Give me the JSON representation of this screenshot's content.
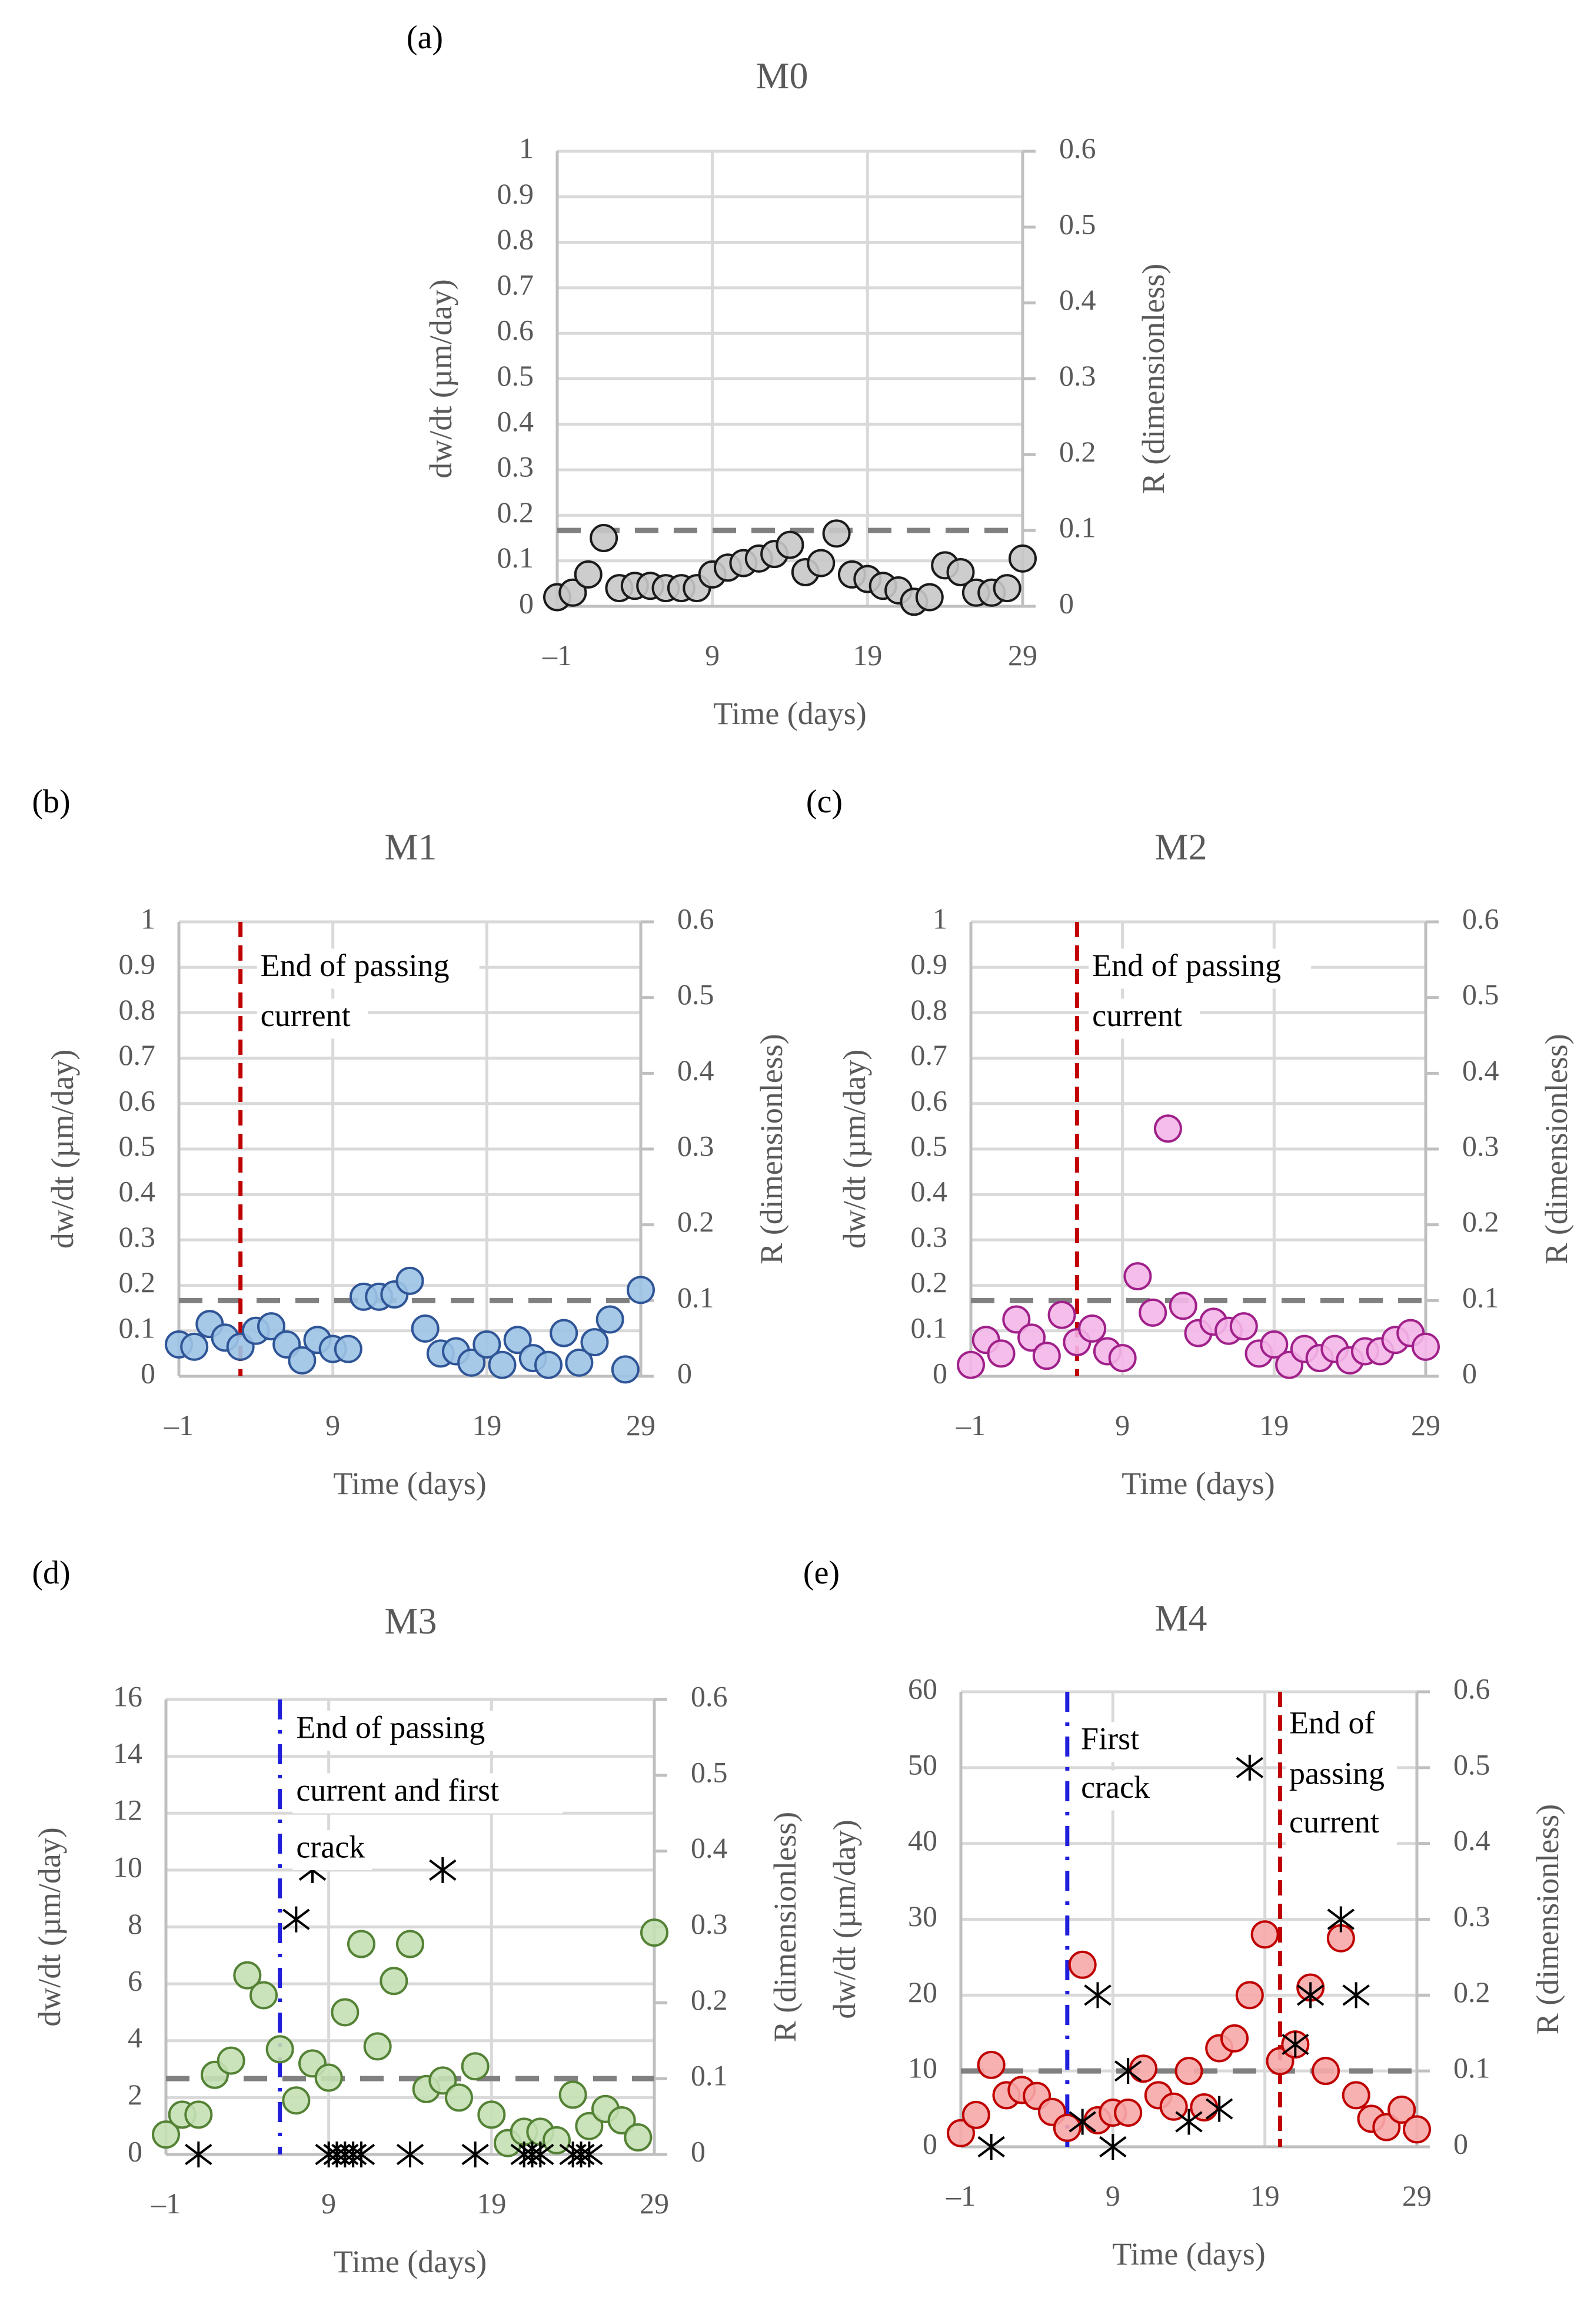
{
  "chart_data": [
    {
      "panel_label": "(a)",
      "title": "M0",
      "type": "scatter",
      "xlabel": "Time (days)",
      "ylabel": "dw/dt (µm/day)",
      "y2label": "R (dimensionless)",
      "xlim": [
        -1,
        29
      ],
      "xticks": [
        -1,
        9,
        19,
        29
      ],
      "ylim": [
        0,
        1
      ],
      "yticks": [
        0,
        0.1,
        0.2,
        0.3,
        0.4,
        0.5,
        0.6,
        0.7,
        0.8,
        0.9,
        1
      ],
      "y2lim": [
        0,
        0.6
      ],
      "y2ticks": [
        0,
        0.1,
        0.2,
        0.3,
        0.4,
        0.5,
        0.6
      ],
      "grid": true,
      "series": [
        {
          "name": "dw/dt",
          "axis": "left",
          "marker": "circle",
          "color": "#c8c8c8",
          "edge": "#1a1a1a",
          "x": [
            -1,
            0,
            1,
            2,
            3,
            4,
            5,
            6,
            7,
            8,
            9,
            10,
            11,
            12,
            13,
            14,
            15,
            16,
            17,
            18,
            19,
            20,
            21,
            22,
            23,
            24,
            25,
            26,
            27,
            28,
            29
          ],
          "y": [
            0.02,
            0.03,
            0.07,
            0.15,
            0.04,
            0.045,
            0.045,
            0.04,
            0.04,
            0.04,
            0.07,
            0.085,
            0.095,
            0.105,
            0.115,
            0.135,
            0.075,
            0.095,
            0.16,
            0.07,
            0.06,
            0.045,
            0.035,
            0.01,
            0.02,
            0.09,
            0.075,
            0.03,
            0.03,
            0.04,
            0.105
          ]
        }
      ],
      "threshold": {
        "axis": "right",
        "value": 0.1,
        "color": "#808080"
      },
      "vlines": [],
      "annotations": []
    },
    {
      "panel_label": "(b)",
      "title": "M1",
      "type": "scatter",
      "xlabel": "Time (days)",
      "ylabel": "dw/dt (µm/day)",
      "y2label": "R (dimensionless)",
      "xlim": [
        -1,
        29
      ],
      "xticks": [
        -1,
        9,
        19,
        29
      ],
      "ylim": [
        0,
        1
      ],
      "yticks": [
        0,
        0.1,
        0.2,
        0.3,
        0.4,
        0.5,
        0.6,
        0.7,
        0.8,
        0.9,
        1
      ],
      "y2lim": [
        0,
        0.6
      ],
      "y2ticks": [
        0,
        0.1,
        0.2,
        0.3,
        0.4,
        0.5,
        0.6
      ],
      "grid": true,
      "series": [
        {
          "name": "dw/dt",
          "axis": "left",
          "marker": "circle",
          "color": "#9dc3e6",
          "edge": "#2f5597",
          "x": [
            -1,
            0,
            1,
            2,
            3,
            4,
            5,
            6,
            7,
            8,
            9,
            10,
            11,
            12,
            13,
            14,
            15,
            16,
            17,
            18,
            19,
            20,
            21,
            22,
            23,
            24,
            25,
            26,
            27,
            28,
            29
          ],
          "y": [
            0.07,
            0.065,
            0.115,
            0.085,
            0.065,
            0.1,
            0.11,
            0.07,
            0.035,
            0.08,
            0.06,
            0.06,
            0.175,
            0.175,
            0.18,
            0.21,
            0.105,
            0.05,
            0.055,
            0.03,
            0.07,
            0.025,
            0.08,
            0.04,
            0.025,
            0.095,
            0.03,
            0.075,
            0.125,
            0.015,
            0.19
          ]
        }
      ],
      "threshold": {
        "axis": "right",
        "value": 0.1,
        "color": "#808080"
      },
      "vlines": [
        {
          "x": 3,
          "color": "#c00000",
          "style": "dashed"
        }
      ],
      "annotations": [
        {
          "lines": [
            "End of passing",
            "current"
          ],
          "x": 4.3,
          "y": [
            0.897,
            0.787
          ]
        }
      ]
    },
    {
      "panel_label": "(c)",
      "title": "M2",
      "type": "scatter",
      "xlabel": "Time (days)",
      "ylabel": "dw/dt (µm/day)",
      "y2label": "R (dimensionless)",
      "xlim": [
        -1,
        29
      ],
      "xticks": [
        -1,
        9,
        19,
        29
      ],
      "ylim": [
        0,
        1
      ],
      "yticks": [
        0,
        0.1,
        0.2,
        0.3,
        0.4,
        0.5,
        0.6,
        0.7,
        0.8,
        0.9,
        1
      ],
      "y2lim": [
        0,
        0.6
      ],
      "y2ticks": [
        0,
        0.1,
        0.2,
        0.3,
        0.4,
        0.5,
        0.6
      ],
      "grid": true,
      "series": [
        {
          "name": "dw/dt",
          "axis": "left",
          "marker": "circle",
          "color": "#f4b6e8",
          "edge": "#a0208a",
          "x": [
            -1,
            0,
            1,
            2,
            3,
            4,
            5,
            6,
            7,
            8,
            9,
            10,
            11,
            12,
            13,
            14,
            15,
            16,
            17,
            18,
            19,
            20,
            21,
            22,
            23,
            24,
            25,
            26,
            27,
            28,
            29
          ],
          "y": [
            0.025,
            0.08,
            0.05,
            0.125,
            0.085,
            0.045,
            0.135,
            0.075,
            0.105,
            0.055,
            0.04,
            0.22,
            0.14,
            0.545,
            0.155,
            0.095,
            0.12,
            0.1,
            0.11,
            0.05,
            0.07,
            0.025,
            0.06,
            0.04,
            0.06,
            0.035,
            0.055,
            0.055,
            0.08,
            0.095,
            0.065
          ]
        }
      ],
      "threshold": {
        "axis": "right",
        "value": 0.1,
        "color": "#808080"
      },
      "vlines": [
        {
          "x": 6,
          "color": "#c00000",
          "style": "dashed"
        }
      ],
      "annotations": [
        {
          "lines": [
            "End of passing",
            "current"
          ],
          "x": 7.0,
          "y": [
            0.897,
            0.787
          ]
        }
      ]
    },
    {
      "panel_label": "(d)",
      "title": "M3",
      "type": "scatter",
      "xlabel": "Time (days)",
      "ylabel": "dw/dt (µm/day)",
      "y2label": "R (dimensionless)",
      "xlim": [
        -1,
        29
      ],
      "xticks": [
        -1,
        9,
        19,
        29
      ],
      "ylim": [
        0,
        16
      ],
      "yticks": [
        0,
        2,
        4,
        6,
        8,
        10,
        12,
        14,
        16
      ],
      "y2lim": [
        0,
        0.6
      ],
      "y2ticks": [
        0,
        0.1,
        0.2,
        0.3,
        0.4,
        0.5,
        0.6
      ],
      "grid": true,
      "series": [
        {
          "name": "dw/dt",
          "axis": "left",
          "marker": "circle",
          "color": "#c5e0b4",
          "edge": "#548235",
          "x": [
            -1,
            0,
            1,
            2,
            3,
            4,
            5,
            6,
            7,
            8,
            9,
            10,
            11,
            12,
            13,
            14,
            15,
            16,
            17,
            18,
            19,
            20,
            21,
            22,
            23,
            24,
            25,
            26,
            27,
            28,
            29
          ],
          "y": [
            0.7,
            1.4,
            1.4,
            2.8,
            3.3,
            6.3,
            5.6,
            3.7,
            1.9,
            3.2,
            2.7,
            5.0,
            7.4,
            3.8,
            6.1,
            7.4,
            2.3,
            2.6,
            2.0,
            3.1,
            1.4,
            0.4,
            0.8,
            0.8,
            0.5,
            2.1,
            1.0,
            1.6,
            1.2,
            0.6,
            7.8
          ]
        },
        {
          "name": "R",
          "axis": "right",
          "marker": "asterisk",
          "color": "#000000",
          "x": [
            1,
            7,
            8,
            9,
            9.5,
            10,
            10.5,
            11,
            14,
            16,
            18,
            21,
            21.5,
            22,
            24,
            24.5,
            25
          ],
          "y": [
            0,
            0.31,
            0.375,
            0,
            0,
            0,
            0,
            0,
            0,
            0.375,
            0,
            0,
            0,
            0,
            0,
            0,
            0
          ]
        }
      ],
      "threshold": {
        "axis": "right",
        "value": 0.1,
        "color": "#808080"
      },
      "vlines": [
        {
          "x": 6,
          "color": "#1f1fdc",
          "style": "dashdot"
        }
      ],
      "annotations": [
        {
          "lines": [
            "End of passing",
            "current and first",
            "crack"
          ],
          "x": 7.0,
          "y": [
            14.9,
            12.7,
            10.7
          ]
        }
      ]
    },
    {
      "panel_label": "(e)",
      "title": "M4",
      "type": "scatter",
      "xlabel": "Time (days)",
      "ylabel": "dw/dt (µm/day)",
      "y2label": "R (dimensionless)",
      "xlim": [
        -1,
        29
      ],
      "xticks": [
        -1,
        9,
        19,
        29
      ],
      "ylim": [
        0,
        60
      ],
      "yticks": [
        0,
        10,
        20,
        30,
        40,
        50,
        60
      ],
      "y2lim": [
        0,
        0.6
      ],
      "y2ticks": [
        0,
        0.1,
        0.2,
        0.3,
        0.4,
        0.5,
        0.6
      ],
      "grid": true,
      "series": [
        {
          "name": "dw/dt",
          "axis": "left",
          "marker": "circle",
          "color": "#f7a8a8",
          "edge": "#c00000",
          "x": [
            -1,
            0,
            1,
            2,
            3,
            4,
            5,
            6,
            7,
            8,
            9,
            10,
            11,
            12,
            13,
            14,
            15,
            16,
            17,
            18,
            19,
            20,
            21,
            22,
            23,
            24,
            25,
            26,
            27,
            28,
            29
          ],
          "y": [
            1.8,
            4.2,
            10.8,
            6.8,
            7.5,
            6.7,
            4.6,
            2.5,
            24,
            3.5,
            4.5,
            4.5,
            10.3,
            6.8,
            5.3,
            10,
            5.2,
            13,
            14.3,
            20,
            28,
            11.3,
            13.5,
            21,
            10,
            27.5,
            6.8,
            3.7,
            2.6,
            4.9,
            2.3
          ]
        },
        {
          "name": "R",
          "axis": "right",
          "marker": "asterisk",
          "color": "#000000",
          "x": [
            1,
            7,
            8,
            9,
            10,
            14,
            16,
            18,
            21,
            22,
            24,
            25
          ],
          "y": [
            0,
            0.033,
            0.2,
            0,
            0.1,
            0.033,
            0.05,
            0.5,
            0.135,
            0.2,
            0.3,
            0.2
          ]
        }
      ],
      "threshold": {
        "axis": "right",
        "value": 0.1,
        "color": "#808080"
      },
      "vlines": [
        {
          "x": 6,
          "color": "#1f1fdc",
          "style": "dashdot"
        },
        {
          "x": 20,
          "color": "#c00000",
          "style": "dashed"
        }
      ],
      "annotations": [
        {
          "lines": [
            "First",
            "crack"
          ],
          "x": 6.9,
          "y": [
            53.4,
            47.0
          ]
        },
        {
          "lines": [
            "End of",
            "passing",
            "current"
          ],
          "x": 20.6,
          "y": [
            55.5,
            48.8,
            42.4
          ]
        }
      ]
    }
  ]
}
